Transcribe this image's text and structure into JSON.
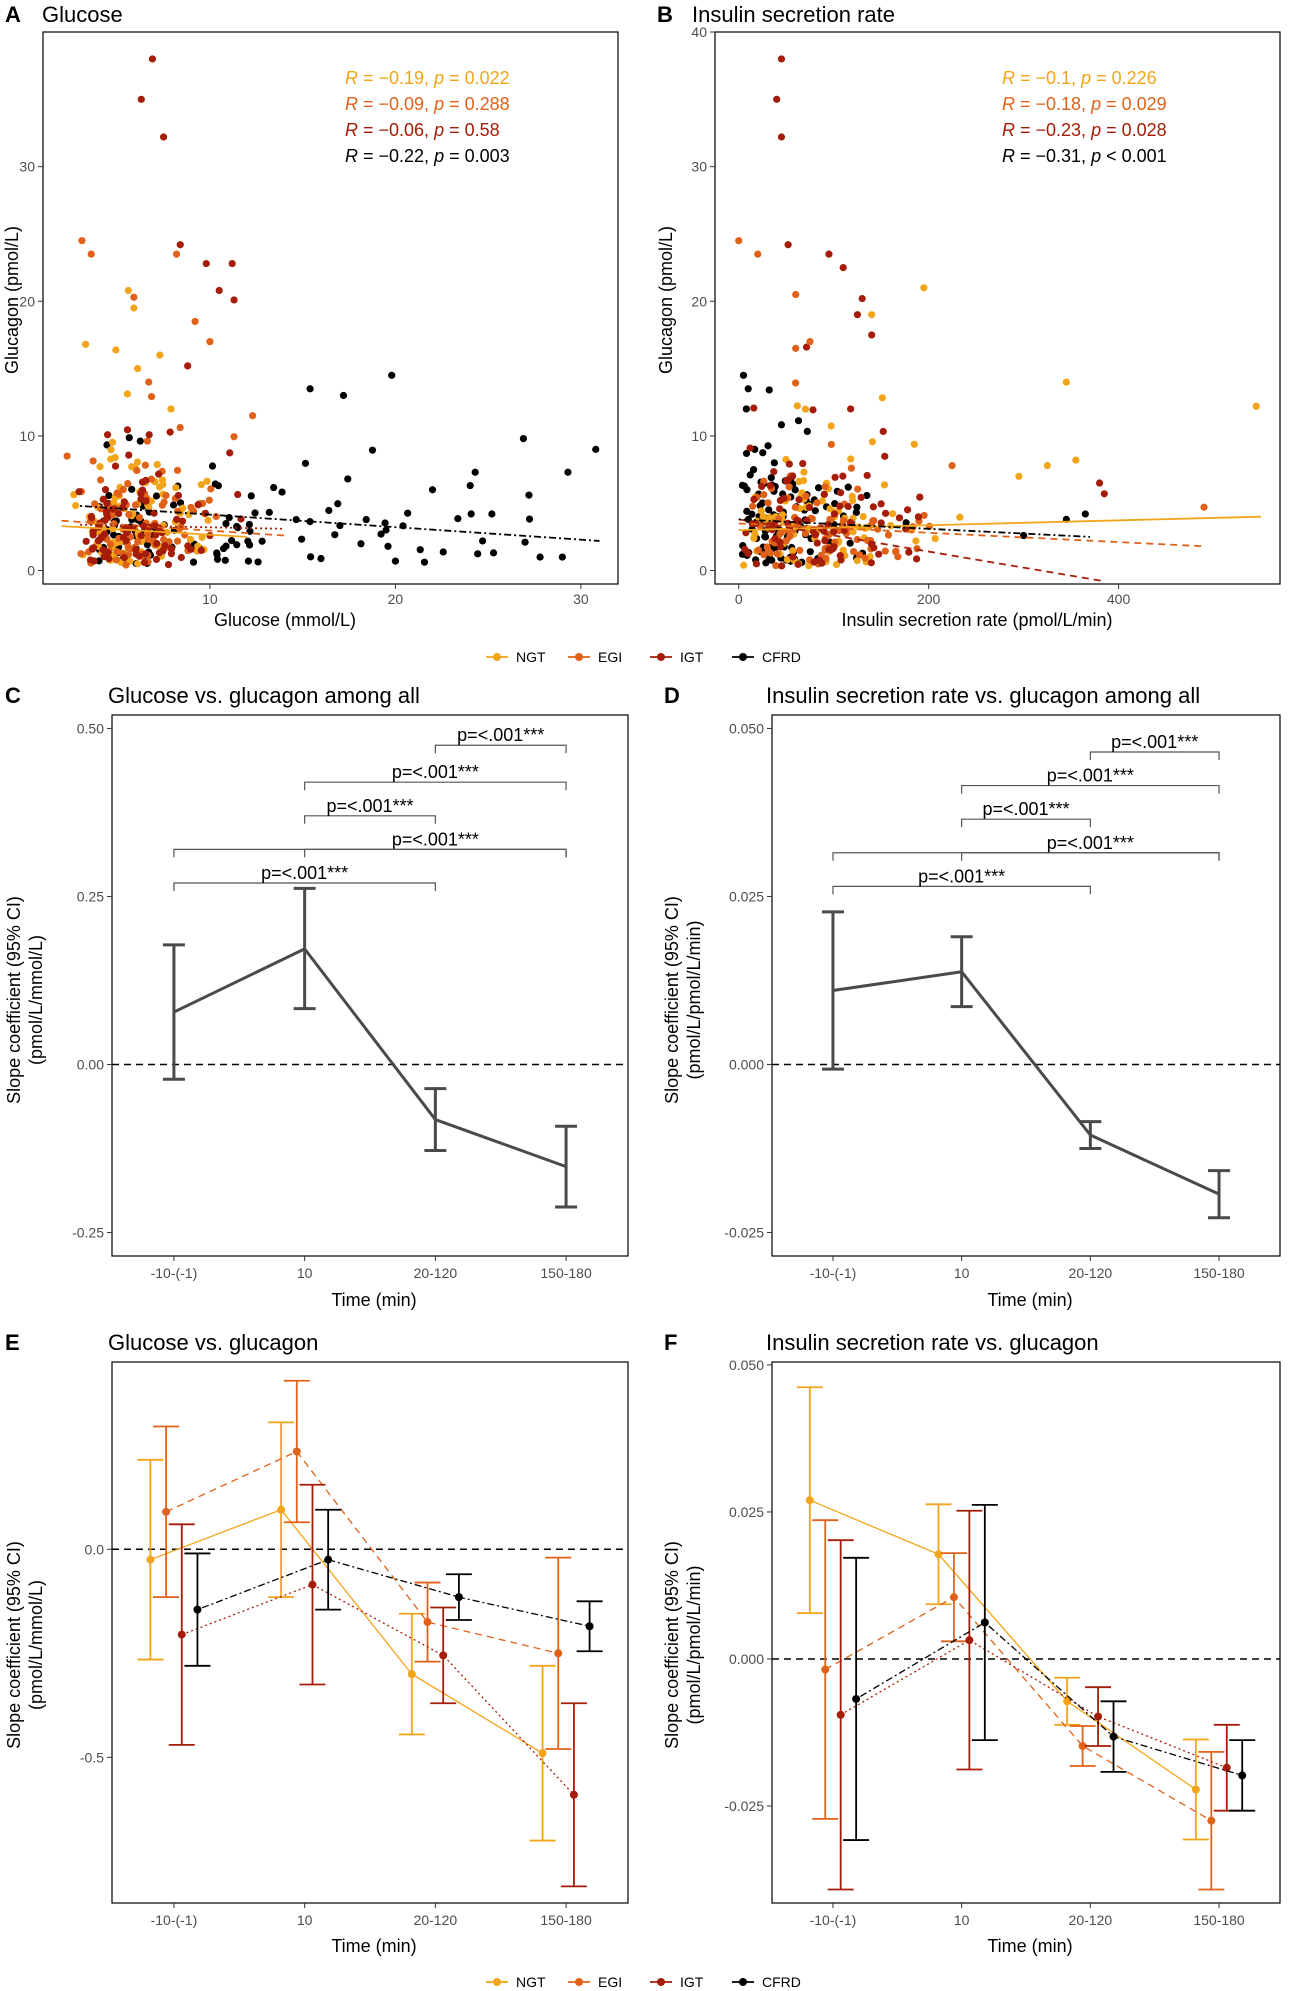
{
  "colors": {
    "NGT": "#F2A51A",
    "EGI": "#E0621A",
    "IGT": "#A51D08",
    "CFRD": "#000000",
    "overall": "#4a4a4a"
  },
  "legend": [
    {
      "key": "NGT",
      "label": "NGT"
    },
    {
      "key": "EGI",
      "label": "EGI"
    },
    {
      "key": "IGT",
      "label": "IGT"
    },
    {
      "key": "CFRD",
      "label": "CFRD"
    }
  ],
  "chart_data": [
    {
      "panel": "A",
      "type": "scatter",
      "title": "Glucose",
      "xlabel": "Glucose (mmol/L)",
      "ylabel": "Glucagon (pmol/L)",
      "xlim": [
        1,
        32
      ],
      "ylim": [
        -1,
        40
      ],
      "xticks": [
        10,
        20,
        30
      ],
      "yticks": [
        0,
        10,
        20,
        30
      ],
      "annotations": [
        {
          "group": "NGT",
          "r": "−0.19",
          "p_op": "=",
          "p": "0.022"
        },
        {
          "group": "EGI",
          "r": "−0.09",
          "p_op": "=",
          "p": "0.288"
        },
        {
          "group": "IGT",
          "r": "−0.06",
          "p_op": "=",
          "p": "0.58"
        },
        {
          "group": "CFRD",
          "r": "−0.22",
          "p_op": "=",
          "p": "0.003"
        }
      ],
      "fits": [
        {
          "group": "NGT",
          "dash": "solid",
          "x": [
            2,
            12
          ],
          "y": [
            3.3,
            2.5
          ]
        },
        {
          "group": "EGI",
          "dash": "dashed",
          "x": [
            2,
            14
          ],
          "y": [
            3.7,
            2.6
          ]
        },
        {
          "group": "IGT",
          "dash": "dotted",
          "x": [
            3,
            14
          ],
          "y": [
            3.4,
            3.1
          ]
        },
        {
          "group": "CFRD",
          "dash": "dotdash",
          "x": [
            3,
            31
          ],
          "y": [
            4.8,
            2.2
          ]
        }
      ],
      "highlight_points": [
        {
          "group": "IGT",
          "x": 6.9,
          "y": 38
        },
        {
          "group": "IGT",
          "x": 6.3,
          "y": 35
        },
        {
          "group": "IGT",
          "x": 7.5,
          "y": 32.2
        },
        {
          "group": "IGT",
          "x": 8.4,
          "y": 24.2
        },
        {
          "group": "IGT",
          "x": 9.8,
          "y": 22.8
        },
        {
          "group": "IGT",
          "x": 10.5,
          "y": 20.8
        },
        {
          "group": "IGT",
          "x": 11.2,
          "y": 22.8
        },
        {
          "group": "IGT",
          "x": 11.3,
          "y": 20.1
        },
        {
          "group": "IGT",
          "x": 8.8,
          "y": 15.2
        },
        {
          "group": "EGI",
          "x": 3.1,
          "y": 24.5
        },
        {
          "group": "EGI",
          "x": 3.6,
          "y": 23.5
        },
        {
          "group": "EGI",
          "x": 5.9,
          "y": 20.3
        },
        {
          "group": "EGI",
          "x": 8.2,
          "y": 23.5
        },
        {
          "group": "EGI",
          "x": 9.2,
          "y": 18.5
        },
        {
          "group": "EGI",
          "x": 10.0,
          "y": 17.0
        },
        {
          "group": "EGI",
          "x": 6.7,
          "y": 14.0
        },
        {
          "group": "EGI",
          "x": 2.3,
          "y": 8.5
        },
        {
          "group": "EGI",
          "x": 12.3,
          "y": 11.5
        },
        {
          "group": "NGT",
          "x": 5.6,
          "y": 20.8
        },
        {
          "group": "NGT",
          "x": 5.9,
          "y": 19.5
        },
        {
          "group": "NGT",
          "x": 3.3,
          "y": 16.8
        },
        {
          "group": "NGT",
          "x": 7.3,
          "y": 16.0
        },
        {
          "group": "NGT",
          "x": 6.1,
          "y": 15.0
        },
        {
          "group": "NGT",
          "x": 7.9,
          "y": 12.0
        },
        {
          "group": "CFRD",
          "x": 15.4,
          "y": 13.5
        },
        {
          "group": "CFRD",
          "x": 17.2,
          "y": 13.0
        },
        {
          "group": "CFRD",
          "x": 19.8,
          "y": 14.5
        },
        {
          "group": "CFRD",
          "x": 26.9,
          "y": 9.8
        },
        {
          "group": "CFRD",
          "x": 30.8,
          "y": 9.0
        },
        {
          "group": "CFRD",
          "x": 29.3,
          "y": 7.3
        },
        {
          "group": "CFRD",
          "x": 24.3,
          "y": 7.3
        },
        {
          "group": "CFRD",
          "x": 25.2,
          "y": 4.2
        },
        {
          "group": "CFRD",
          "x": 27.2,
          "y": 5.6
        },
        {
          "group": "CFRD",
          "x": 22.0,
          "y": 6.0
        },
        {
          "group": "CFRD",
          "x": 19.6,
          "y": 1.8
        },
        {
          "group": "CFRD",
          "x": 20.0,
          "y": 0.7
        },
        {
          "group": "CFRD",
          "x": 27.8,
          "y": 1.0
        },
        {
          "group": "CFRD",
          "x": 29.0,
          "y": 1.0
        },
        {
          "group": "CFRD",
          "x": 24.7,
          "y": 2.2
        }
      ]
    },
    {
      "panel": "B",
      "type": "scatter",
      "title": "Insulin secretion rate",
      "xlabel": "Insulin secretion rate (pmol/L/min)",
      "ylabel": "Glucagon (pmol/L)",
      "xlim": [
        -25,
        570
      ],
      "ylim": [
        -1,
        40
      ],
      "xticks": [
        0,
        200,
        400
      ],
      "yticks": [
        0,
        10,
        20,
        30,
        40
      ],
      "annotations": [
        {
          "group": "NGT",
          "r": "−0.1",
          "p_op": "=",
          "p": "0.226"
        },
        {
          "group": "EGI",
          "r": "−0.18",
          "p_op": "=",
          "p": "0.029"
        },
        {
          "group": "IGT",
          "r": "−0.23",
          "p_op": "=",
          "p": "0.028"
        },
        {
          "group": "CFRD",
          "r": "−0.31",
          "p_op": "<",
          "p": "0.001"
        }
      ],
      "fits": [
        {
          "group": "NGT",
          "dash": "solid",
          "x": [
            0,
            550
          ],
          "y": [
            3.0,
            4.0
          ]
        },
        {
          "group": "EGI",
          "dash": "dashed",
          "x": [
            0,
            490
          ],
          "y": [
            3.5,
            1.8
          ]
        },
        {
          "group": "IGT",
          "dash": "dashed",
          "x": [
            0,
            385
          ],
          "y": [
            3.8,
            -0.8
          ]
        },
        {
          "group": "CFRD",
          "dash": "dotdash",
          "x": [
            0,
            370
          ],
          "y": [
            3.8,
            2.5
          ]
        }
      ],
      "highlight_points": [
        {
          "group": "IGT",
          "x": 45,
          "y": 38
        },
        {
          "group": "IGT",
          "x": 40,
          "y": 35
        },
        {
          "group": "IGT",
          "x": 45,
          "y": 32.2
        },
        {
          "group": "IGT",
          "x": 52,
          "y": 24.2
        },
        {
          "group": "IGT",
          "x": 95,
          "y": 23.5
        },
        {
          "group": "IGT",
          "x": 110,
          "y": 22.5
        },
        {
          "group": "IGT",
          "x": 130,
          "y": 20.2
        },
        {
          "group": "IGT",
          "x": 140,
          "y": 17.5
        },
        {
          "group": "IGT",
          "x": 125,
          "y": 19.0
        },
        {
          "group": "EGI",
          "x": 0,
          "y": 24.5
        },
        {
          "group": "EGI",
          "x": 20,
          "y": 23.5
        },
        {
          "group": "EGI",
          "x": 60,
          "y": 20.5
        },
        {
          "group": "EGI",
          "x": 75,
          "y": 17.0
        },
        {
          "group": "EGI",
          "x": 60,
          "y": 16.5
        },
        {
          "group": "EGI",
          "x": 490,
          "y": 4.7
        },
        {
          "group": "NGT",
          "x": 195,
          "y": 21.0
        },
        {
          "group": "NGT",
          "x": 140,
          "y": 19.0
        },
        {
          "group": "NGT",
          "x": 545,
          "y": 12.2
        },
        {
          "group": "NGT",
          "x": 345,
          "y": 14.0
        },
        {
          "group": "NGT",
          "x": 355,
          "y": 8.2
        },
        {
          "group": "NGT",
          "x": 325,
          "y": 7.8
        },
        {
          "group": "NGT",
          "x": 295,
          "y": 7.0
        },
        {
          "group": "IGT",
          "x": 380,
          "y": 6.5
        },
        {
          "group": "IGT",
          "x": 385,
          "y": 5.7
        },
        {
          "group": "CFRD",
          "x": 365,
          "y": 4.2
        },
        {
          "group": "CFRD",
          "x": 345,
          "y": 3.8
        },
        {
          "group": "CFRD",
          "x": 300,
          "y": 2.6
        },
        {
          "group": "CFRD",
          "x": 5,
          "y": 14.5
        },
        {
          "group": "CFRD",
          "x": 10,
          "y": 13.5
        },
        {
          "group": "CFRD",
          "x": 8,
          "y": 12.0
        }
      ]
    },
    {
      "panel": "C",
      "type": "line",
      "title": "Glucose vs. glucagon among all",
      "xlabel": "Time (min)",
      "ylabel": [
        "Slope coefficient (95% CI)",
        "(pmol/L/mmol/L)"
      ],
      "categories": [
        "-10-(-1)",
        "10",
        "20-120",
        "150-180"
      ],
      "ylim": [
        -0.285,
        0.52
      ],
      "yticks": [
        -0.25,
        0.0,
        0.25,
        0.5
      ],
      "ytick_labels": [
        "-0.25",
        "0.00",
        "0.25",
        "0.50"
      ],
      "series": [
        {
          "name": "All",
          "values": [
            0.078,
            0.172,
            -0.082,
            -0.152
          ],
          "lower": [
            -0.022,
            0.083,
            -0.128,
            -0.212
          ],
          "upper": [
            0.178,
            0.262,
            -0.036,
            -0.092
          ]
        }
      ],
      "comparisons": [
        {
          "from": 2,
          "to": 3,
          "y": 0.475,
          "label": "p=<.001***"
        },
        {
          "from": 1,
          "to": 3,
          "y": 0.42,
          "label": "p=<.001***"
        },
        {
          "from": 1,
          "to": 2,
          "y": 0.37,
          "label": "p=<.001***"
        },
        {
          "from": 1,
          "to": 3,
          "y": 0.32,
          "label": "p=<.001***"
        },
        {
          "from": 0,
          "to": 3,
          "y": 0.32,
          "label": ""
        },
        {
          "from": 0,
          "to": 2,
          "y": 0.27,
          "label": "p=<.001***"
        }
      ]
    },
    {
      "panel": "D",
      "type": "line",
      "title": "Insulin secretion rate vs. glucagon among all",
      "xlabel": "Time (min)",
      "ylabel": [
        "Slope coefficient (95% CI)",
        "(pmol/L/pmol/L/min)"
      ],
      "categories": [
        "-10-(-1)",
        "10",
        "20-120",
        "150-180"
      ],
      "ylim": [
        -0.0285,
        0.052
      ],
      "yticks": [
        -0.025,
        0.0,
        0.025,
        0.05
      ],
      "ytick_labels": [
        "-0.025",
        "0.000",
        "0.025",
        "0.050"
      ],
      "series": [
        {
          "name": "All",
          "values": [
            0.011,
            0.0138,
            -0.0105,
            -0.0193
          ],
          "lower": [
            -0.0007,
            0.0086,
            -0.0125,
            -0.0228
          ],
          "upper": [
            0.0227,
            0.019,
            -0.0085,
            -0.0158
          ]
        }
      ],
      "comparisons": [
        {
          "from": 2,
          "to": 3,
          "y": 0.0465,
          "label": "p=<.001***"
        },
        {
          "from": 1,
          "to": 3,
          "y": 0.0415,
          "label": "p=<.001***"
        },
        {
          "from": 1,
          "to": 2,
          "y": 0.0365,
          "label": "p=<.001***"
        },
        {
          "from": 1,
          "to": 3,
          "y": 0.0315,
          "label": "p=<.001***"
        },
        {
          "from": 0,
          "to": 3,
          "y": 0.0315,
          "label": ""
        },
        {
          "from": 0,
          "to": 2,
          "y": 0.0265,
          "label": "p=<.001***"
        }
      ]
    },
    {
      "panel": "E",
      "type": "line",
      "title": "Glucose vs. glucagon",
      "xlabel": "Time (min)",
      "ylabel": [
        "Slope coefficient (95% CI)",
        "(pmol/L/mmol/L)"
      ],
      "categories": [
        "-10-(-1)",
        "10",
        "20-120",
        "150-180"
      ],
      "ylim": [
        -0.85,
        0.45
      ],
      "yticks": [
        -0.5,
        0.0
      ],
      "ytick_labels": [
        "-0.5",
        "0.0"
      ],
      "series": [
        {
          "name": "NGT",
          "dash": "solid",
          "offset": -0.18,
          "values": [
            -0.025,
            0.095,
            -0.3,
            -0.49
          ],
          "lower": [
            -0.265,
            -0.115,
            -0.445,
            -0.7
          ],
          "upper": [
            0.215,
            0.305,
            -0.155,
            -0.28
          ]
        },
        {
          "name": "EGI",
          "dash": "dashed",
          "offset": -0.06,
          "values": [
            0.09,
            0.235,
            -0.175,
            -0.25
          ],
          "lower": [
            -0.115,
            0.065,
            -0.27,
            -0.48
          ],
          "upper": [
            0.295,
            0.405,
            -0.08,
            -0.02
          ]
        },
        {
          "name": "IGT",
          "dash": "dotted",
          "offset": 0.06,
          "values": [
            -0.205,
            -0.085,
            -0.255,
            -0.59
          ],
          "lower": [
            -0.47,
            -0.325,
            -0.37,
            -0.81
          ],
          "upper": [
            0.06,
            0.155,
            -0.14,
            -0.37
          ]
        },
        {
          "name": "CFRD",
          "dash": "dotdash",
          "offset": 0.18,
          "values": [
            -0.145,
            -0.025,
            -0.115,
            -0.185
          ],
          "lower": [
            -0.28,
            -0.145,
            -0.17,
            -0.245
          ],
          "upper": [
            -0.01,
            0.095,
            -0.06,
            -0.125
          ]
        }
      ]
    },
    {
      "panel": "F",
      "type": "line",
      "title": "Insulin secretion rate vs. glucagon",
      "xlabel": "Time (min)",
      "ylabel": [
        "Slope coefficient (95% CI)",
        "(pmol/L/pmol/L/min)"
      ],
      "categories": [
        "-10-(-1)",
        "10",
        "20-120",
        "150-180"
      ],
      "ylim": [
        -0.0415,
        0.0505
      ],
      "yticks": [
        -0.025,
        0.0,
        0.025,
        0.05
      ],
      "ytick_labels": [
        "-0.025",
        "0.000",
        "0.025",
        "0.050"
      ],
      "series": [
        {
          "name": "NGT",
          "dash": "solid",
          "offset": -0.18,
          "values": [
            0.027,
            0.0178,
            -0.0072,
            -0.0222
          ],
          "lower": [
            0.0078,
            0.0093,
            -0.0112,
            -0.0307
          ],
          "upper": [
            0.0462,
            0.0263,
            -0.0032,
            -0.0137
          ]
        },
        {
          "name": "EGI",
          "dash": "dashed",
          "offset": -0.06,
          "values": [
            -0.0018,
            0.0105,
            -0.0148,
            -0.0275
          ],
          "lower": [
            -0.0272,
            0.003,
            -0.0182,
            -0.0392
          ],
          "upper": [
            0.0236,
            0.018,
            -0.0114,
            -0.0158
          ]
        },
        {
          "name": "IGT",
          "dash": "dotted",
          "offset": 0.06,
          "values": [
            -0.0095,
            0.0032,
            -0.0098,
            -0.0185
          ],
          "lower": [
            -0.0392,
            -0.0188,
            -0.0148,
            -0.0258
          ],
          "upper": [
            0.0202,
            0.0252,
            -0.0048,
            -0.0112
          ]
        },
        {
          "name": "CFRD",
          "dash": "dotdash",
          "offset": 0.18,
          "values": [
            -0.0068,
            0.0062,
            -0.0132,
            -0.0198
          ],
          "lower": [
            -0.0308,
            -0.0138,
            -0.0192,
            -0.0258
          ],
          "upper": [
            0.0172,
            0.0262,
            -0.0072,
            -0.0138
          ]
        }
      ]
    }
  ]
}
